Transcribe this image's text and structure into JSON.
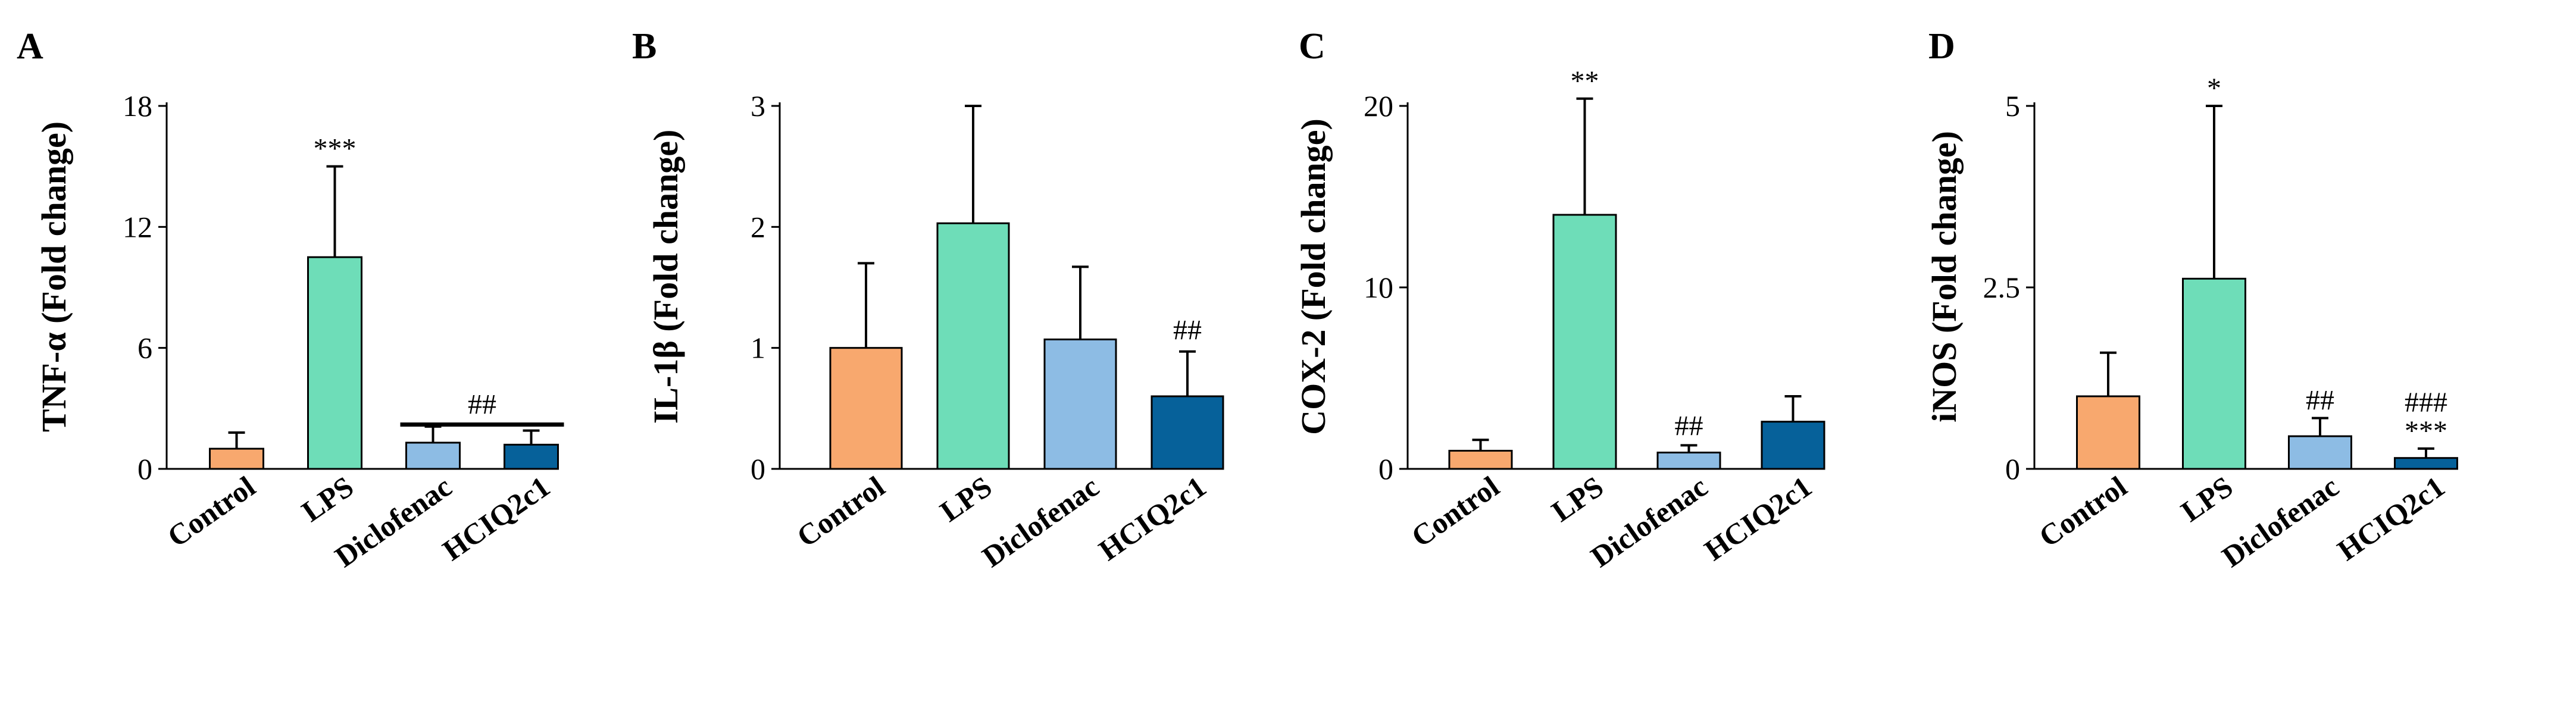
{
  "chart_data": [
    {
      "type": "bar",
      "panel": "A",
      "ylabel": "TNF-α (Fold change)",
      "ylim": [
        0,
        18
      ],
      "yticks": [
        0,
        6,
        12,
        18
      ],
      "ytick_labels": [
        "0",
        "6",
        "12",
        "18"
      ],
      "categories": [
        "Control",
        "LPS",
        "Diclofenac",
        "HCIQ2c1"
      ],
      "values": [
        1.0,
        10.5,
        1.3,
        1.2
      ],
      "errors": [
        0.8,
        4.5,
        0.8,
        0.7
      ],
      "colors": [
        "#F8A86E",
        "#6EDDB8",
        "#8DBCE4",
        "#06619A"
      ],
      "annotations": [
        {
          "category_index": 1,
          "text": "***",
          "at_value": 15.0
        },
        {
          "category_index": 2,
          "text": "##",
          "at_value": 3.5,
          "span_to_index": 3,
          "bracket_at_value": 2.2
        }
      ]
    },
    {
      "type": "bar",
      "panel": "B",
      "ylabel": "IL-1β (Fold change)",
      "ylim": [
        0,
        3
      ],
      "yticks": [
        0,
        1,
        2,
        3
      ],
      "ytick_labels": [
        "0",
        "1",
        "2",
        "3"
      ],
      "categories": [
        "Control",
        "LPS",
        "Diclofenac",
        "HCIQ2c1"
      ],
      "values": [
        1.0,
        2.03,
        1.07,
        0.6
      ],
      "errors": [
        0.7,
        0.97,
        0.6,
        0.37
      ],
      "colors": [
        "#F8A86E",
        "#6EDDB8",
        "#8DBCE4",
        "#06619A"
      ],
      "annotations": [
        {
          "category_index": 3,
          "text": "##",
          "at_value": 1.0
        }
      ]
    },
    {
      "type": "bar",
      "panel": "C",
      "ylabel": "COX-2 (Fold change)",
      "ylim": [
        0,
        20
      ],
      "yticks": [
        0,
        10,
        20
      ],
      "ytick_labels": [
        "0",
        "10",
        "20"
      ],
      "categories": [
        "Control",
        "LPS",
        "Diclofenac",
        "HCIQ2c1"
      ],
      "values": [
        1.0,
        14.0,
        0.9,
        2.6
      ],
      "errors": [
        0.6,
        6.4,
        0.4,
        1.4
      ],
      "colors": [
        "#F8A86E",
        "#6EDDB8",
        "#8DBCE4",
        "#06619A"
      ],
      "annotations": [
        {
          "category_index": 1,
          "text": "**",
          "at_value": 20.4
        },
        {
          "category_index": 2,
          "text": "##",
          "at_value": 1.4
        }
      ]
    },
    {
      "type": "bar",
      "panel": "D",
      "ylabel": "iNOS (Fold change)",
      "ylim": [
        0,
        5
      ],
      "yticks": [
        0,
        2.5,
        5
      ],
      "ytick_labels": [
        "0",
        "2.5",
        "5"
      ],
      "categories": [
        "Control",
        "LPS",
        "Diclofenac",
        "HCIQ2c1"
      ],
      "values": [
        1.0,
        2.62,
        0.45,
        0.15
      ],
      "errors": [
        0.6,
        2.38,
        0.25,
        0.13
      ],
      "colors": [
        "#F8A86E",
        "#6EDDB8",
        "#8DBCE4",
        "#06619A"
      ],
      "annotations": [
        {
          "category_index": 1,
          "text": "*",
          "at_value": 5.0
        },
        {
          "category_index": 2,
          "text": "##",
          "at_value": 0.7
        },
        {
          "category_index": 3,
          "text": "***",
          "at_value": 0.28
        },
        {
          "category_index": 3,
          "text": "###",
          "at_value": 0.28,
          "stack": 1
        }
      ]
    }
  ]
}
